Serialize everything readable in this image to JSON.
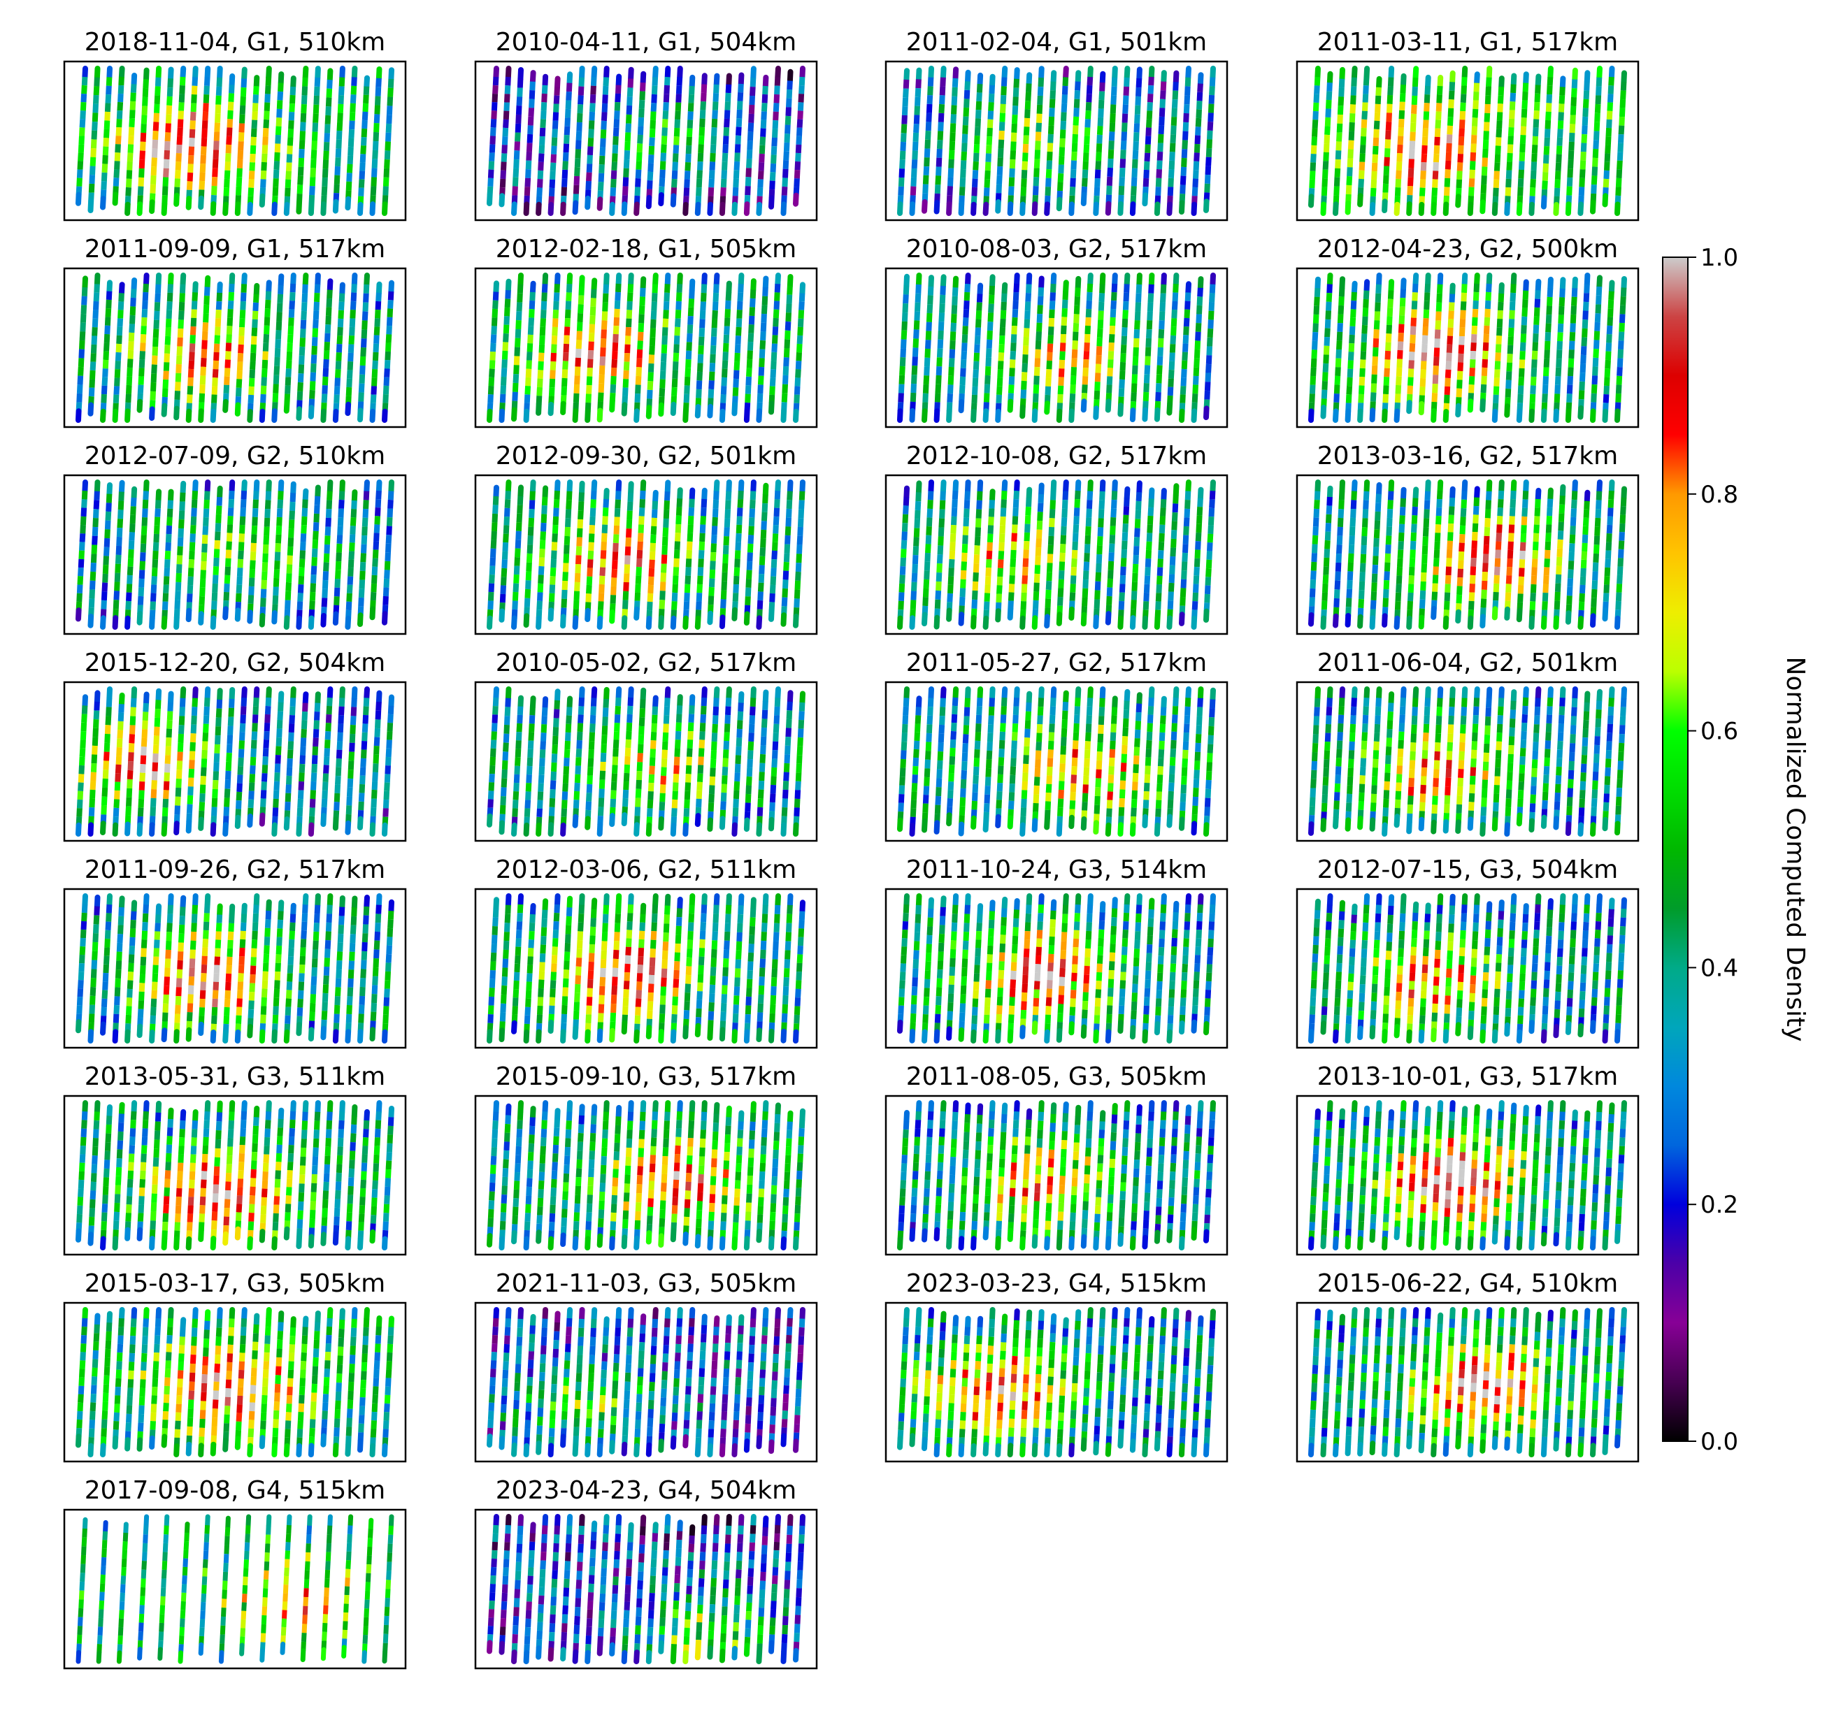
{
  "chart_data": {
    "type": "heatmap",
    "colormap": "nipy_spectral",
    "colorbar": {
      "label": "Normalized Computed Density",
      "range": [
        0.0,
        1.0
      ],
      "ticks": [
        "0.0",
        "0.2",
        "0.4",
        "0.6",
        "0.8",
        "1.0"
      ],
      "placement": "right"
    },
    "panels": [
      {
        "title": "2018-11-04, G1, 510km",
        "tracks": 26,
        "hotspot": {
          "u": 0.35,
          "v": 0.45,
          "intensity": 0.55
        },
        "background": 0.45
      },
      {
        "title": "2010-04-11, G1, 504km",
        "tracks": 26,
        "hotspot": {
          "u": 0.55,
          "v": 0.5,
          "intensity": 0.25
        },
        "background": 0.25
      },
      {
        "title": "2011-02-04, G1, 501km",
        "tracks": 26,
        "hotspot": {
          "u": 0.4,
          "v": 0.5,
          "intensity": 0.3
        },
        "background": 0.32
      },
      {
        "title": "2011-03-11, G1, 517km",
        "tracks": 26,
        "hotspot": {
          "u": 0.38,
          "v": 0.45,
          "intensity": 0.42
        },
        "background": 0.5
      },
      {
        "title": "2011-09-09, G1, 517km",
        "tracks": 26,
        "hotspot": {
          "u": 0.4,
          "v": 0.45,
          "intensity": 0.45
        },
        "background": 0.4
      },
      {
        "title": "2012-02-18, G1, 505km",
        "tracks": 26,
        "hotspot": {
          "u": 0.33,
          "v": 0.45,
          "intensity": 0.45
        },
        "background": 0.42
      },
      {
        "title": "2010-08-03, G2, 517km",
        "tracks": 26,
        "hotspot": {
          "u": 0.55,
          "v": 0.4,
          "intensity": 0.35
        },
        "background": 0.4
      },
      {
        "title": "2012-04-23, G2, 500km",
        "tracks": 26,
        "hotspot": {
          "u": 0.4,
          "v": 0.45,
          "intensity": 0.6
        },
        "background": 0.42
      },
      {
        "title": "2012-07-09, G2, 510km",
        "tracks": 26,
        "hotspot": {
          "u": 0.5,
          "v": 0.5,
          "intensity": 0.2
        },
        "background": 0.38
      },
      {
        "title": "2012-09-30, G2, 501km",
        "tracks": 26,
        "hotspot": {
          "u": 0.42,
          "v": 0.45,
          "intensity": 0.45
        },
        "background": 0.4
      },
      {
        "title": "2012-10-08, G2, 517km",
        "tracks": 26,
        "hotspot": {
          "u": 0.35,
          "v": 0.45,
          "intensity": 0.35
        },
        "background": 0.4
      },
      {
        "title": "2013-03-16, G2, 517km",
        "tracks": 26,
        "hotspot": {
          "u": 0.58,
          "v": 0.45,
          "intensity": 0.55
        },
        "background": 0.4
      },
      {
        "title": "2015-12-20, G2, 504km",
        "tracks": 26,
        "hotspot": {
          "u": 0.2,
          "v": 0.5,
          "intensity": 0.55
        },
        "background": 0.35
      },
      {
        "title": "2010-05-02, G2, 517km",
        "tracks": 26,
        "hotspot": {
          "u": 0.55,
          "v": 0.45,
          "intensity": 0.35
        },
        "background": 0.38
      },
      {
        "title": "2011-05-27, G2, 517km",
        "tracks": 26,
        "hotspot": {
          "u": 0.6,
          "v": 0.4,
          "intensity": 0.4
        },
        "background": 0.42
      },
      {
        "title": "2011-06-04, G2, 501km",
        "tracks": 26,
        "hotspot": {
          "u": 0.42,
          "v": 0.4,
          "intensity": 0.45
        },
        "background": 0.4
      },
      {
        "title": "2011-09-26, G2, 517km",
        "tracks": 26,
        "hotspot": {
          "u": 0.42,
          "v": 0.45,
          "intensity": 0.55
        },
        "background": 0.4
      },
      {
        "title": "2012-03-06, G2, 511km",
        "tracks": 26,
        "hotspot": {
          "u": 0.42,
          "v": 0.45,
          "intensity": 0.55
        },
        "background": 0.42
      },
      {
        "title": "2011-10-24, G3, 514km",
        "tracks": 26,
        "hotspot": {
          "u": 0.45,
          "v": 0.45,
          "intensity": 0.55
        },
        "background": 0.4
      },
      {
        "title": "2012-07-15, G3, 504km",
        "tracks": 26,
        "hotspot": {
          "u": 0.38,
          "v": 0.4,
          "intensity": 0.45
        },
        "background": 0.38
      },
      {
        "title": "2013-05-31, G3, 511km",
        "tracks": 26,
        "hotspot": {
          "u": 0.45,
          "v": 0.35,
          "intensity": 0.55
        },
        "background": 0.42
      },
      {
        "title": "2015-09-10, G3, 517km",
        "tracks": 26,
        "hotspot": {
          "u": 0.6,
          "v": 0.45,
          "intensity": 0.45
        },
        "background": 0.42
      },
      {
        "title": "2011-08-05, G3, 505km",
        "tracks": 26,
        "hotspot": {
          "u": 0.45,
          "v": 0.45,
          "intensity": 0.45
        },
        "background": 0.38
      },
      {
        "title": "2013-10-01, G3, 517km",
        "tracks": 26,
        "hotspot": {
          "u": 0.45,
          "v": 0.45,
          "intensity": 0.6
        },
        "background": 0.4
      },
      {
        "title": "2015-03-17, G3, 505km",
        "tracks": 26,
        "hotspot": {
          "u": 0.48,
          "v": 0.45,
          "intensity": 0.5
        },
        "background": 0.45
      },
      {
        "title": "2021-11-03, G3, 505km",
        "tracks": 26,
        "hotspot": {
          "u": 0.32,
          "v": 0.3,
          "intensity": 0.3
        },
        "background": 0.28
      },
      {
        "title": "2023-03-23, G4, 515km",
        "tracks": 26,
        "hotspot": {
          "u": 0.3,
          "v": 0.45,
          "intensity": 0.55
        },
        "background": 0.38
      },
      {
        "title": "2015-06-22, G4, 510km",
        "tracks": 26,
        "hotspot": {
          "u": 0.55,
          "v": 0.45,
          "intensity": 0.55
        },
        "background": 0.4
      },
      {
        "title": "2017-09-08, G4, 515km",
        "tracks": 16,
        "hotspot": {
          "u": 0.7,
          "v": 0.4,
          "intensity": 0.35
        },
        "background": 0.45
      },
      {
        "title": "2023-04-23, G4, 504km",
        "tracks": 26,
        "hotspot": {
          "u": 0.7,
          "v": 0.15,
          "intensity": 0.4
        },
        "background": 0.25
      }
    ]
  }
}
